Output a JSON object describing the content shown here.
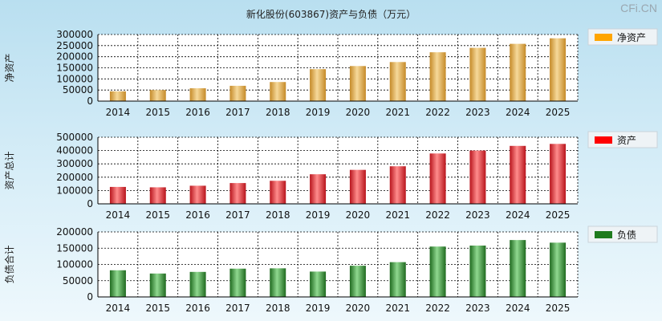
{
  "title": "新化股份(603867)资产与负债（万元）",
  "watermark": "CFi.CN",
  "chart_data": [
    {
      "type": "bar",
      "ylabel": "净资产",
      "legend": "净资产",
      "legend_color": "#ffa500",
      "bar_colors": [
        "#c58a28",
        "#f6d99a"
      ],
      "categories": [
        "2014",
        "2015",
        "2016",
        "2017",
        "2018",
        "2019",
        "2020",
        "2021",
        "2022",
        "2023",
        "2024",
        "2025"
      ],
      "values": [
        44000,
        50000,
        58000,
        69000,
        86000,
        144000,
        158000,
        176000,
        220000,
        240000,
        258000,
        283000
      ],
      "ylim": [
        0,
        300000
      ],
      "yticks": [
        "300000",
        "250000",
        "200000",
        "150000",
        "100000",
        "50000",
        "0"
      ],
      "ytick_values": [
        300000,
        250000,
        200000,
        150000,
        100000,
        50000,
        0
      ]
    },
    {
      "type": "bar",
      "ylabel": "资产总计",
      "legend": "资产",
      "legend_color": "#ff0000",
      "bar_colors": [
        "#b8141c",
        "#ff8c8c"
      ],
      "categories": [
        "2014",
        "2015",
        "2016",
        "2017",
        "2018",
        "2019",
        "2020",
        "2021",
        "2022",
        "2023",
        "2024",
        "2025"
      ],
      "values": [
        127000,
        124000,
        136000,
        156000,
        173000,
        222000,
        255000,
        282000,
        378000,
        400000,
        435000,
        450000
      ],
      "ylim": [
        0,
        500000
      ],
      "yticks": [
        "500000",
        "400000",
        "300000",
        "200000",
        "100000",
        "0"
      ],
      "ytick_values": [
        500000,
        400000,
        300000,
        200000,
        100000,
        0
      ]
    },
    {
      "type": "bar",
      "ylabel": "负债合计",
      "legend": "负债",
      "legend_color": "#1e7b1e",
      "bar_colors": [
        "#1f6a1f",
        "#8fd88f"
      ],
      "categories": [
        "2014",
        "2015",
        "2016",
        "2017",
        "2018",
        "2019",
        "2020",
        "2021",
        "2022",
        "2023",
        "2024",
        "2025"
      ],
      "values": [
        82000,
        72000,
        77000,
        87000,
        88000,
        78000,
        96000,
        107000,
        155000,
        158000,
        175000,
        167000
      ],
      "ylim": [
        0,
        200000
      ],
      "yticks": [
        "200000",
        "150000",
        "100000",
        "50000",
        "0"
      ],
      "ytick_values": [
        200000,
        150000,
        100000,
        50000,
        0
      ]
    }
  ]
}
